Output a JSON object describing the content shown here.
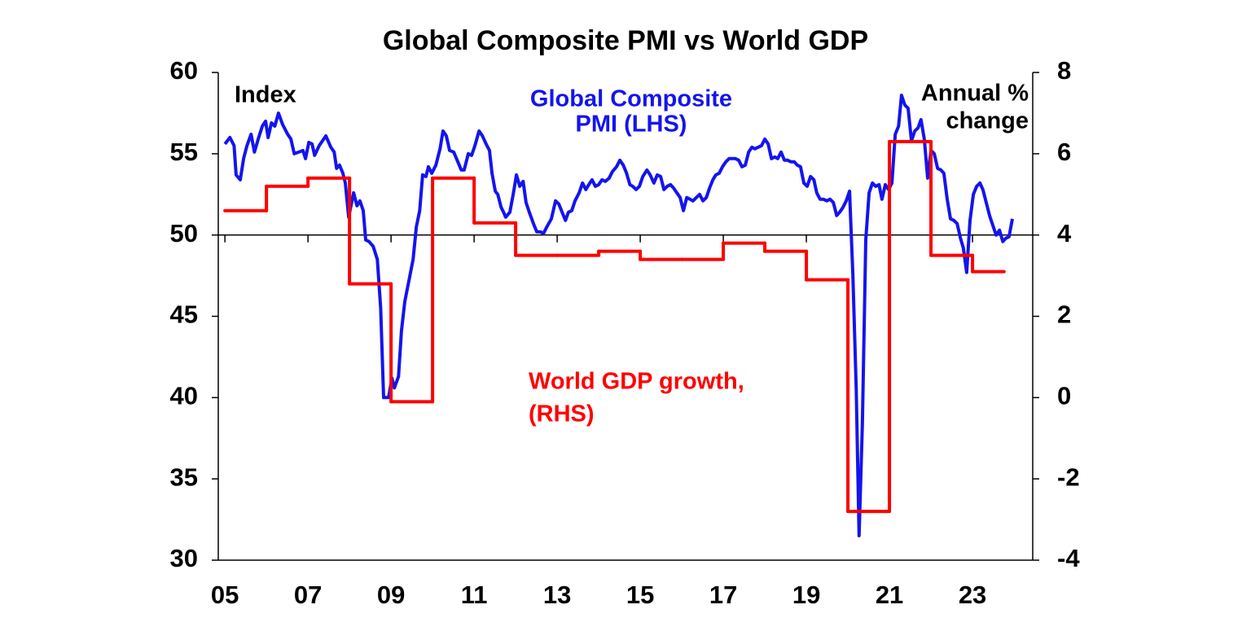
{
  "chart_data": {
    "type": "line",
    "title": "Global Composite PMI vs World GDP",
    "annotations": [
      "Index",
      "Global Composite",
      "PMI (LHS)",
      "Annual %",
      "change",
      "World GDP growth,",
      "(RHS)"
    ],
    "xlim": [
      2004.84,
      2024.45
    ],
    "xticks": [
      {
        "value": 2005,
        "label": "05"
      },
      {
        "value": 2007,
        "label": "07"
      },
      {
        "value": 2009,
        "label": "09"
      },
      {
        "value": 2011,
        "label": "11"
      },
      {
        "value": 2013,
        "label": "13"
      },
      {
        "value": 2015,
        "label": "15"
      },
      {
        "value": 2017,
        "label": "17"
      },
      {
        "value": 2019,
        "label": "19"
      },
      {
        "value": 2021,
        "label": "21"
      },
      {
        "value": 2023,
        "label": "23"
      }
    ],
    "ylim": [
      30,
      60
    ],
    "yticks": [
      30,
      35,
      40,
      45,
      50,
      55,
      60
    ],
    "y2lim": [
      -4,
      8
    ],
    "y2ticks": [
      -4,
      -2,
      0,
      2,
      4,
      6,
      8
    ],
    "x_axis_at": 50,
    "series": [
      {
        "name": "Global Composite PMI (LHS)",
        "color": "#1414ee",
        "x": [
          2005.0,
          2005.12,
          2005.22,
          2005.27,
          2005.37,
          2005.45,
          2005.53,
          2005.63,
          2005.71,
          2005.8,
          2005.9,
          2005.98,
          2006.04,
          2006.12,
          2006.2,
          2006.29,
          2006.39,
          2006.51,
          2006.59,
          2006.67,
          2006.78,
          2006.88,
          2006.94,
          2007.02,
          2007.1,
          2007.16,
          2007.27,
          2007.43,
          2007.55,
          2007.63,
          2007.69,
          2007.76,
          2007.84,
          2007.9,
          2007.98,
          2008.1,
          2008.18,
          2008.25,
          2008.33,
          2008.39,
          2008.47,
          2008.57,
          2008.67,
          2008.75,
          2008.82,
          2008.94,
          2009.02,
          2009.08,
          2009.18,
          2009.25,
          2009.33,
          2009.43,
          2009.53,
          2009.61,
          2009.69,
          2009.76,
          2009.84,
          2009.9,
          2009.98,
          2010.08,
          2010.18,
          2010.25,
          2010.33,
          2010.41,
          2010.51,
          2010.61,
          2010.69,
          2010.76,
          2010.86,
          2010.94,
          2011.02,
          2011.12,
          2011.2,
          2011.29,
          2011.37,
          2011.43,
          2011.51,
          2011.57,
          2011.65,
          2011.71,
          2011.76,
          2011.86,
          2011.94,
          2012.02,
          2012.1,
          2012.18,
          2012.25,
          2012.33,
          2012.43,
          2012.51,
          2012.59,
          2012.67,
          2012.75,
          2012.86,
          2012.96,
          2013.04,
          2013.12,
          2013.2,
          2013.27,
          2013.35,
          2013.43,
          2013.53,
          2013.61,
          2013.69,
          2013.76,
          2013.84,
          2013.92,
          2014.0,
          2014.08,
          2014.16,
          2014.25,
          2014.33,
          2014.43,
          2014.51,
          2014.59,
          2014.67,
          2014.75,
          2014.82,
          2014.9,
          2014.98,
          2015.06,
          2015.16,
          2015.24,
          2015.33,
          2015.41,
          2015.49,
          2015.57,
          2015.65,
          2015.73,
          2015.8,
          2015.88,
          2015.96,
          2016.04,
          2016.12,
          2016.2,
          2016.27,
          2016.35,
          2016.43,
          2016.51,
          2016.59,
          2016.67,
          2016.75,
          2016.82,
          2016.9,
          2016.98,
          2017.06,
          2017.14,
          2017.22,
          2017.29,
          2017.37,
          2017.45,
          2017.53,
          2017.61,
          2017.69,
          2017.76,
          2017.84,
          2017.92,
          2018.0,
          2018.08,
          2018.16,
          2018.24,
          2018.31,
          2018.39,
          2018.47,
          2018.55,
          2018.63,
          2018.71,
          2018.78,
          2018.86,
          2018.94,
          2019.02,
          2019.1,
          2019.18,
          2019.25,
          2019.33,
          2019.41,
          2019.49,
          2019.57,
          2019.65,
          2019.73,
          2019.8,
          2019.88,
          2019.96,
          2020.04,
          2020.12,
          2020.2,
          2020.27,
          2020.35,
          2020.43,
          2020.51,
          2020.59,
          2020.67,
          2020.75,
          2020.82,
          2020.9,
          2020.98,
          2021.06,
          2021.14,
          2021.22,
          2021.29,
          2021.37,
          2021.45,
          2021.53,
          2021.61,
          2021.69,
          2021.76,
          2021.84,
          2021.92,
          2022.0,
          2022.08,
          2022.16,
          2022.24,
          2022.31,
          2022.39,
          2022.47,
          2022.55,
          2022.63,
          2022.71,
          2022.78,
          2022.86,
          2022.94,
          2023.02,
          2023.1,
          2023.18,
          2023.25,
          2023.33,
          2023.41,
          2023.49,
          2023.57,
          2023.65,
          2023.73,
          2023.8,
          2023.88,
          2023.96
        ],
        "values": [
          55.6,
          56.0,
          55.5,
          53.7,
          53.4,
          54.7,
          55.5,
          56.2,
          55.1,
          55.9,
          56.7,
          57.0,
          56.0,
          56.9,
          56.7,
          57.5,
          56.8,
          56.2,
          55.9,
          55.0,
          55.1,
          55.2,
          54.7,
          55.7,
          55.6,
          54.9,
          55.5,
          56.1,
          55.4,
          55.1,
          54.1,
          54.3,
          53.8,
          53.2,
          51.1,
          52.6,
          51.8,
          52.1,
          51.5,
          49.7,
          49.6,
          49.3,
          48.5,
          45.5,
          40.0,
          40.0,
          41.2,
          40.6,
          41.3,
          44.1,
          45.9,
          47.2,
          48.5,
          50.5,
          51.5,
          53.7,
          53.6,
          54.2,
          53.8,
          54.3,
          55.3,
          56.4,
          56.1,
          55.2,
          55.1,
          54.5,
          54.0,
          54.0,
          55.0,
          54.9,
          55.5,
          56.4,
          56.1,
          55.6,
          55.2,
          53.8,
          52.7,
          52.5,
          51.7,
          51.4,
          51.1,
          51.4,
          52.5,
          53.7,
          53.0,
          53.3,
          52.0,
          51.4,
          50.7,
          50.2,
          50.2,
          50.1,
          50.5,
          51.0,
          52.1,
          51.9,
          51.4,
          50.9,
          51.4,
          51.5,
          52.1,
          52.6,
          53.2,
          52.8,
          53.1,
          53.4,
          53.0,
          53.1,
          53.4,
          53.3,
          53.5,
          53.9,
          54.2,
          54.6,
          54.3,
          53.8,
          53.1,
          53.0,
          52.8,
          53.0,
          53.6,
          54.0,
          53.7,
          53.2,
          53.7,
          53.6,
          52.8,
          53.0,
          53.1,
          52.9,
          52.6,
          52.3,
          51.5,
          52.3,
          52.2,
          52.1,
          52.3,
          52.5,
          52.1,
          52.3,
          52.9,
          53.4,
          53.7,
          53.8,
          54.2,
          54.5,
          54.7,
          54.7,
          54.7,
          54.6,
          54.2,
          54.3,
          55.1,
          55.4,
          55.3,
          55.4,
          55.5,
          55.9,
          55.6,
          54.7,
          54.8,
          54.7,
          55.1,
          54.6,
          54.6,
          54.5,
          54.5,
          54.3,
          54.2,
          53.2,
          53.0,
          53.6,
          53.4,
          52.6,
          52.2,
          52.2,
          52.1,
          52.2,
          52.0,
          51.2,
          51.4,
          51.7,
          52.1,
          52.7,
          47.5,
          40.5,
          31.5,
          38.5,
          49.7,
          52.6,
          53.2,
          53.0,
          53.1,
          52.2,
          53.1,
          52.8,
          53.2,
          56.2,
          56.7,
          58.6,
          58.0,
          57.8,
          55.8,
          56.4,
          56.6,
          57.1,
          55.9,
          53.5,
          55.2,
          55.0,
          54.1,
          54.0,
          53.8,
          52.2,
          51.0,
          50.9,
          50.7,
          49.8,
          49.2,
          47.7,
          50.9,
          52.5,
          53.0,
          53.2,
          52.8,
          52.0,
          51.2,
          50.6,
          50.0,
          50.3,
          49.6,
          49.8,
          49.9,
          51.0
        ]
      },
      {
        "name": "World GDP growth, (RHS)",
        "color": "#ff0000",
        "axis": "y2",
        "step": true,
        "x": [
          2005,
          2006,
          2007,
          2008,
          2009,
          2010,
          2011,
          2012,
          2013,
          2014,
          2015,
          2016,
          2017,
          2018,
          2019,
          2020,
          2021,
          2022,
          2023
        ],
        "values": [
          4.6,
          5.2,
          5.4,
          2.8,
          -0.1,
          5.4,
          4.3,
          3.5,
          3.5,
          3.6,
          3.4,
          3.4,
          3.8,
          3.6,
          2.9,
          -2.8,
          6.3,
          3.5,
          3.1
        ]
      }
    ]
  }
}
